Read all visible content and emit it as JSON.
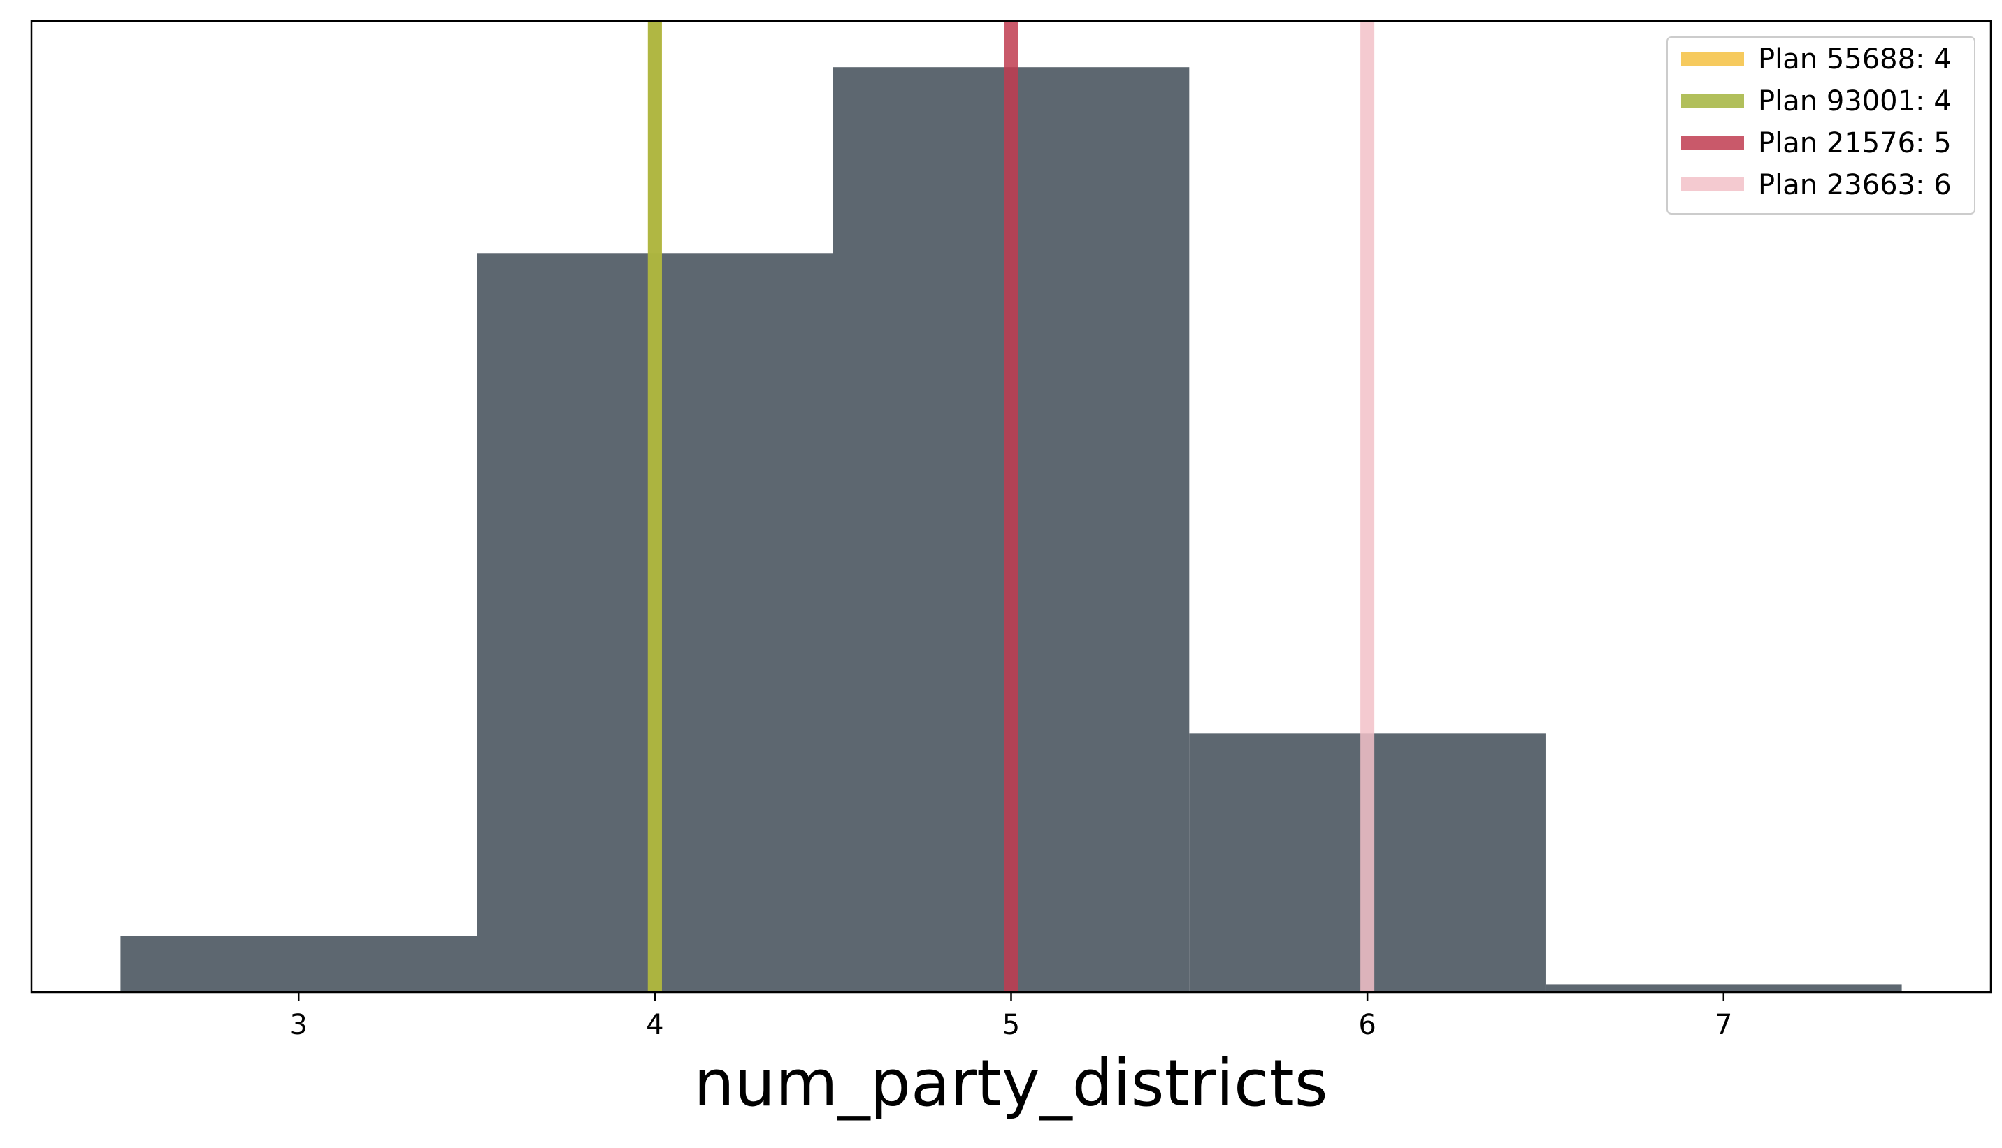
{
  "chart_data": {
    "type": "bar",
    "title": "",
    "xlabel": "num_party_districts",
    "ylabel": "",
    "xlim": [
      2.25,
      7.75
    ],
    "ylim": [
      0,
      1.05
    ],
    "xticks": [
      3,
      4,
      5,
      6,
      7
    ],
    "xtick_labels": [
      "3",
      "4",
      "5",
      "6",
      "7"
    ],
    "y_ticks_shown": false,
    "grid": false,
    "legend_position": "top-right",
    "bar_color": "#5d6770",
    "bins": [
      {
        "center": 3,
        "width": 1,
        "value": 0.061
      },
      {
        "center": 4,
        "width": 1,
        "value": 0.799
      },
      {
        "center": 5,
        "width": 1,
        "value": 1.0
      },
      {
        "center": 6,
        "width": 1,
        "value": 0.28
      },
      {
        "center": 7,
        "width": 1,
        "value": 0.008
      }
    ],
    "vlines": [
      {
        "name": "Plan 55688: 4",
        "x": 4,
        "color": "#f5c142"
      },
      {
        "name": "Plan 93001: 4",
        "x": 4,
        "color": "#a3b43e"
      },
      {
        "name": "Plan 21576: 5",
        "x": 5,
        "color": "#bf3c50"
      },
      {
        "name": "Plan 23663: 6",
        "x": 6,
        "color": "#f2c1c8"
      }
    ]
  }
}
